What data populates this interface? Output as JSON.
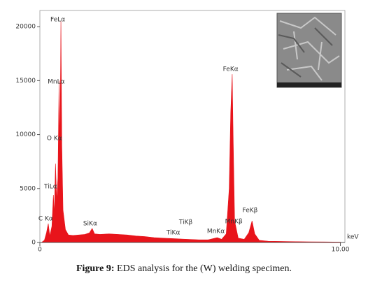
{
  "chart_data": {
    "type": "area",
    "x": [
      0.05,
      0.15,
      0.22,
      0.28,
      0.33,
      0.4,
      0.45,
      0.48,
      0.52,
      0.56,
      0.6,
      0.64,
      0.67,
      0.7,
      0.73,
      0.77,
      0.85,
      0.95,
      1.1,
      1.3,
      1.5,
      1.65,
      1.74,
      1.82,
      2.0,
      2.3,
      2.6,
      2.9,
      3.2,
      3.5,
      3.8,
      4.1,
      4.5,
      4.9,
      5.3,
      5.6,
      5.9,
      6.05,
      6.2,
      6.3,
      6.35,
      6.4,
      6.43,
      6.48,
      6.6,
      6.8,
      6.95,
      7.06,
      7.15,
      7.3,
      7.6,
      8.0,
      8.5,
      9.0,
      9.5,
      10.0
    ],
    "values": [
      0,
      200,
      900,
      1750,
      600,
      1500,
      4400,
      2500,
      7300,
      3800,
      6000,
      15000,
      9000,
      20500,
      9000,
      3000,
      1200,
      700,
      650,
      700,
      750,
      900,
      1300,
      800,
      750,
      800,
      750,
      700,
      600,
      550,
      450,
      400,
      350,
      300,
      250,
      250,
      450,
      300,
      800,
      5000,
      12000,
      15600,
      10000,
      2000,
      400,
      300,
      900,
      2000,
      800,
      200,
      120,
      100,
      80,
      60,
      50,
      40
    ],
    "color": "#e8141b",
    "xlim": [
      0,
      10.15
    ],
    "ylim": [
      0,
      21500
    ],
    "xticks": [
      0,
      {
        "value": 10,
        "label": "10.00"
      }
    ],
    "yticks": [
      0,
      5000,
      10000,
      15000,
      20000
    ],
    "xlabel": "keV",
    "annotations": [
      {
        "text": "FeLα",
        "x": 0.35,
        "y": 20650
      },
      {
        "text": "MnLα",
        "x": 0.26,
        "y": 14900
      },
      {
        "text": "O Kα",
        "x": 0.23,
        "y": 9650
      },
      {
        "text": "TiLα",
        "x": 0.14,
        "y": 5180
      },
      {
        "text": "C Kα",
        "x": -0.05,
        "y": 2200
      },
      {
        "text": "SiKα",
        "x": 1.44,
        "y": 1750
      },
      {
        "text": "TiKα",
        "x": 4.21,
        "y": 900
      },
      {
        "text": "TiKβ",
        "x": 4.63,
        "y": 1880
      },
      {
        "text": "MnKα",
        "x": 5.56,
        "y": 1040
      },
      {
        "text": "MnKβ",
        "x": 6.16,
        "y": 1940
      },
      {
        "text": "FeKα",
        "x": 6.09,
        "y": 16050
      },
      {
        "text": "FeKβ",
        "x": 6.74,
        "y": 2980
      }
    ]
  },
  "caption": {
    "label": "Figure 9:",
    "text": "EDS analysis for the (W) welding specimen."
  }
}
